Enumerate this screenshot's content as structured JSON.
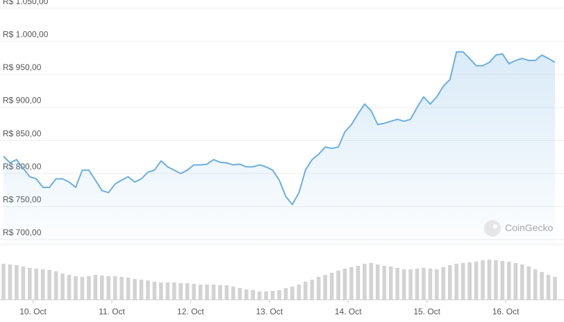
{
  "chart_data": {
    "type": "line",
    "x": [
      -9,
      -7,
      -5,
      -3,
      -1,
      1,
      3,
      5,
      7,
      9,
      11,
      13,
      15,
      17,
      19,
      21,
      23,
      25,
      27,
      29,
      31,
      33,
      35,
      37,
      39,
      41,
      43,
      45,
      47,
      49,
      51,
      53,
      55,
      57,
      59,
      61,
      63,
      65,
      67,
      69,
      71,
      73,
      75,
      77,
      79,
      81,
      83,
      85,
      87,
      89,
      91,
      93,
      95,
      97,
      99,
      101,
      103,
      105,
      107,
      109,
      111,
      113,
      115,
      117,
      119,
      121,
      123,
      125,
      127,
      129,
      131,
      133,
      135,
      137,
      139,
      141,
      143,
      145,
      147,
      149,
      151,
      153,
      155,
      157,
      159
    ],
    "series": [
      {
        "color": "#6aaee0",
        "values": [
          826,
          816,
          821,
          808,
          795,
          792,
          779,
          779,
          792,
          792,
          787,
          779,
          805,
          805,
          790,
          774,
          771,
          784,
          790,
          795,
          787,
          792,
          802,
          805,
          819,
          810,
          805,
          800,
          805,
          813,
          813,
          814,
          821,
          817,
          816,
          813,
          814,
          810,
          810,
          813,
          810,
          805,
          790,
          765,
          753,
          771,
          805,
          821,
          829,
          840,
          838,
          840,
          863,
          874,
          890,
          905,
          895,
          874,
          876,
          879,
          882,
          879,
          882,
          900,
          916,
          905,
          916,
          932,
          942,
          984,
          984,
          974,
          963,
          963,
          968,
          979,
          981,
          966,
          971,
          974,
          971,
          971,
          979,
          974,
          968
        ]
      }
    ],
    "volume": {
      "color": "#d3d3d3",
      "values": [
        52,
        51,
        50,
        48,
        46,
        45,
        44,
        43,
        41,
        38,
        36,
        34,
        33,
        34,
        36,
        35,
        34,
        34,
        33,
        32,
        30,
        29,
        28,
        26,
        25,
        25,
        25,
        24,
        24,
        23,
        22,
        22,
        22,
        21,
        21,
        19,
        17,
        15,
        14,
        12,
        12,
        13,
        14,
        17,
        19,
        22,
        26,
        29,
        33,
        36,
        39,
        42,
        45,
        47,
        49,
        52,
        53,
        51,
        49,
        48,
        46,
        44,
        44,
        45,
        46,
        45,
        44,
        47,
        50,
        52,
        53,
        54,
        55,
        57,
        58,
        57,
        56,
        55,
        53,
        51,
        48,
        44,
        40,
        36,
        33
      ]
    },
    "xlim": [
      -9,
      159
    ],
    "xticks": [
      {
        "value": 0,
        "label": "10. Oct"
      },
      {
        "value": 24,
        "label": "11. Oct"
      },
      {
        "value": 48,
        "label": "12. Oct"
      },
      {
        "value": 72,
        "label": "13. Oct"
      },
      {
        "value": 96,
        "label": "14. Oct"
      },
      {
        "value": 120,
        "label": "15. Oct"
      },
      {
        "value": 144,
        "label": "16. Oct"
      }
    ],
    "ylim": [
      695,
      1054
    ],
    "yticks": [
      {
        "value": 700,
        "label": "R$ 700,00"
      },
      {
        "value": 750,
        "label": "R$ 750,00"
      },
      {
        "value": 800,
        "label": "R$ 800,00"
      },
      {
        "value": 850,
        "label": "R$ 850,00"
      },
      {
        "value": 900,
        "label": "R$ 900,00"
      },
      {
        "value": 950,
        "label": "R$ 950,00"
      },
      {
        "value": 1000,
        "label": "R$ 1.000,00"
      },
      {
        "value": 1050,
        "label": "R$ 1.050,00"
      }
    ],
    "grid": true,
    "watermark": "CoinGecko"
  }
}
